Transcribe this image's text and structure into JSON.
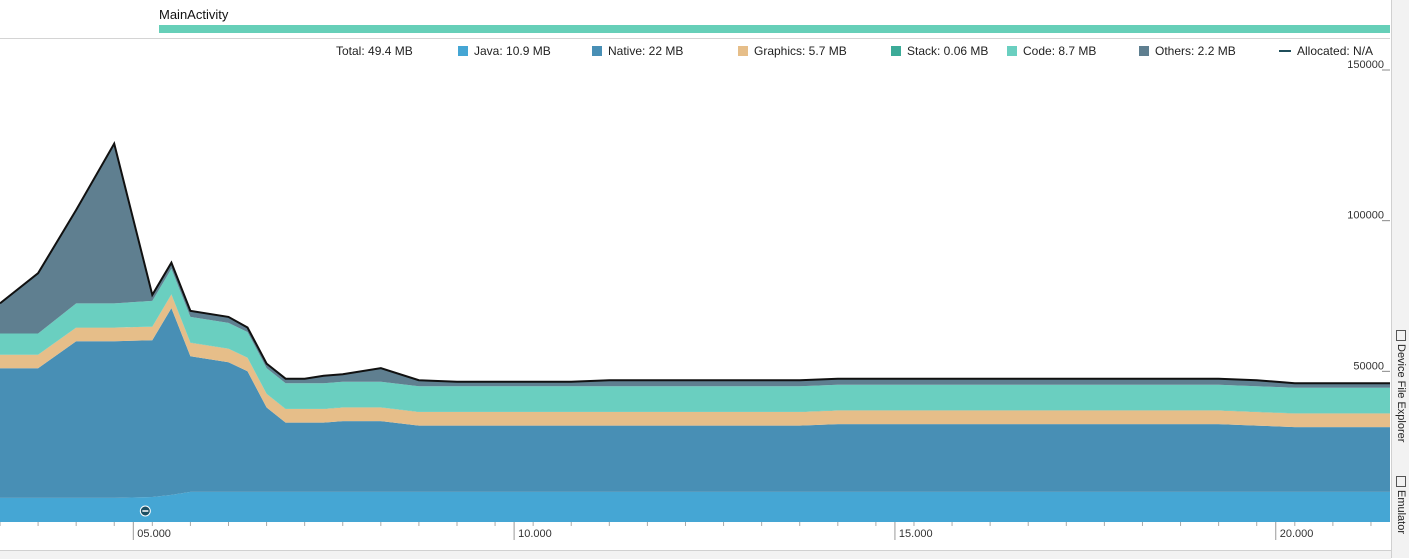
{
  "activity": {
    "label": "MainActivity",
    "color": "#66cfb8"
  },
  "legend": {
    "total": "Total: 49.4 MB",
    "items": [
      {
        "label": "Java: 10.9 MB",
        "color": "#45a6d4"
      },
      {
        "label": "Native: 22 MB",
        "color": "#488fb5"
      },
      {
        "label": "Graphics: 5.7 MB",
        "color": "#e6be89"
      },
      {
        "label": "Stack: 0.06 MB",
        "color": "#3cab98"
      },
      {
        "label": "Code: 8.7 MB",
        "color": "#6acfc0"
      },
      {
        "label": "Others: 2.2 MB",
        "color": "#5f7f90"
      }
    ],
    "allocated": "Allocated: N/A"
  },
  "side_tabs": {
    "device_file_explorer": "Device File Explorer",
    "emulator": "Emulator"
  },
  "chart_data": {
    "type": "area",
    "stacked": true,
    "x": [
      2,
      3,
      4,
      5,
      6,
      6.5,
      7,
      8,
      8.5,
      9,
      9.5,
      10,
      10.5,
      11,
      12,
      13,
      14,
      15,
      16,
      17,
      18,
      19,
      20,
      21,
      22,
      23,
      24,
      25,
      26,
      27,
      28,
      29,
      30,
      31,
      32,
      33,
      34,
      35,
      36,
      37,
      38,
      39
    ],
    "xlim": [
      2,
      38.5
    ],
    "ylim": [
      0,
      150000
    ],
    "yticks": [
      50000,
      100000,
      150000
    ],
    "yticklabels": [
      "50000",
      "100000",
      "150000"
    ],
    "xticks": [
      5.5,
      15.5,
      25.5,
      35.5
    ],
    "xticklabels": [
      "05.000",
      "10.000",
      "15.000",
      "20.000"
    ],
    "series": [
      {
        "name": "Java",
        "color": "#45a6d4",
        "values": [
          8000,
          8000,
          8000,
          8000,
          8300,
          9000,
          10000,
          10000,
          10000,
          10000,
          10000,
          10000,
          10000,
          10000,
          10000,
          10000,
          10000,
          10000,
          10000,
          10000,
          10000,
          10000,
          10000,
          10000,
          10000,
          10000,
          10000,
          10000,
          10000,
          10000,
          10000,
          10000,
          10000,
          10000,
          10000,
          10000,
          10000,
          10000,
          10000,
          10000,
          10000,
          10000
        ]
      },
      {
        "name": "Native",
        "color": "#488fb5",
        "values": [
          43000,
          43000,
          52000,
          52000,
          52000,
          62000,
          45000,
          43000,
          40000,
          28000,
          23000,
          23000,
          23000,
          23500,
          23500,
          22000,
          22000,
          22000,
          22000,
          22000,
          22000,
          22000,
          22000,
          22000,
          22000,
          22000,
          22500,
          22500,
          22500,
          22500,
          22500,
          22500,
          22500,
          22500,
          22500,
          22500,
          22500,
          22000,
          21500,
          21500,
          21500,
          21500
        ]
      },
      {
        "name": "Graphics",
        "color": "#e6be89",
        "values": [
          4500,
          4500,
          4500,
          4500,
          4500,
          4500,
          4500,
          4500,
          4500,
          4500,
          4500,
          4500,
          4500,
          4500,
          4500,
          4500,
          4500,
          4500,
          4500,
          4500,
          4500,
          4500,
          4500,
          4500,
          4500,
          4500,
          4500,
          4500,
          4500,
          4500,
          4500,
          4500,
          4500,
          4500,
          4500,
          4500,
          4500,
          4500,
          4500,
          4500,
          4500,
          4500
        ]
      },
      {
        "name": "Stack",
        "color": "#3cab98",
        "values": [
          60,
          60,
          60,
          60,
          60,
          60,
          60,
          60,
          60,
          60,
          60,
          60,
          60,
          60,
          60,
          60,
          60,
          60,
          60,
          60,
          60,
          60,
          60,
          60,
          60,
          60,
          60,
          60,
          60,
          60,
          60,
          60,
          60,
          60,
          60,
          60,
          60,
          60,
          60,
          60,
          60,
          60
        ]
      },
      {
        "name": "Code",
        "color": "#6acfc0",
        "values": [
          7000,
          7000,
          8000,
          8000,
          8500,
          8500,
          8500,
          8500,
          8500,
          8500,
          8500,
          8500,
          8500,
          8500,
          8500,
          8500,
          8500,
          8500,
          8500,
          8500,
          8500,
          8500,
          8500,
          8500,
          8500,
          8500,
          8500,
          8500,
          8500,
          8500,
          8500,
          8500,
          8500,
          8500,
          8500,
          8500,
          8500,
          8500,
          8500,
          8500,
          8500,
          8500
        ]
      },
      {
        "name": "Others",
        "color": "#5f7f90",
        "values": [
          10000,
          20000,
          31000,
          53000,
          2000,
          2000,
          2000,
          2000,
          1500,
          1500,
          1500,
          1500,
          2500,
          2500,
          4500,
          2000,
          1500,
          1500,
          1500,
          1500,
          2000,
          2000,
          2000,
          2000,
          2000,
          2000,
          2000,
          2000,
          2000,
          2000,
          2000,
          2000,
          2000,
          2000,
          2000,
          2000,
          2000,
          2000,
          1500,
          1500,
          1500,
          1500
        ]
      }
    ]
  }
}
